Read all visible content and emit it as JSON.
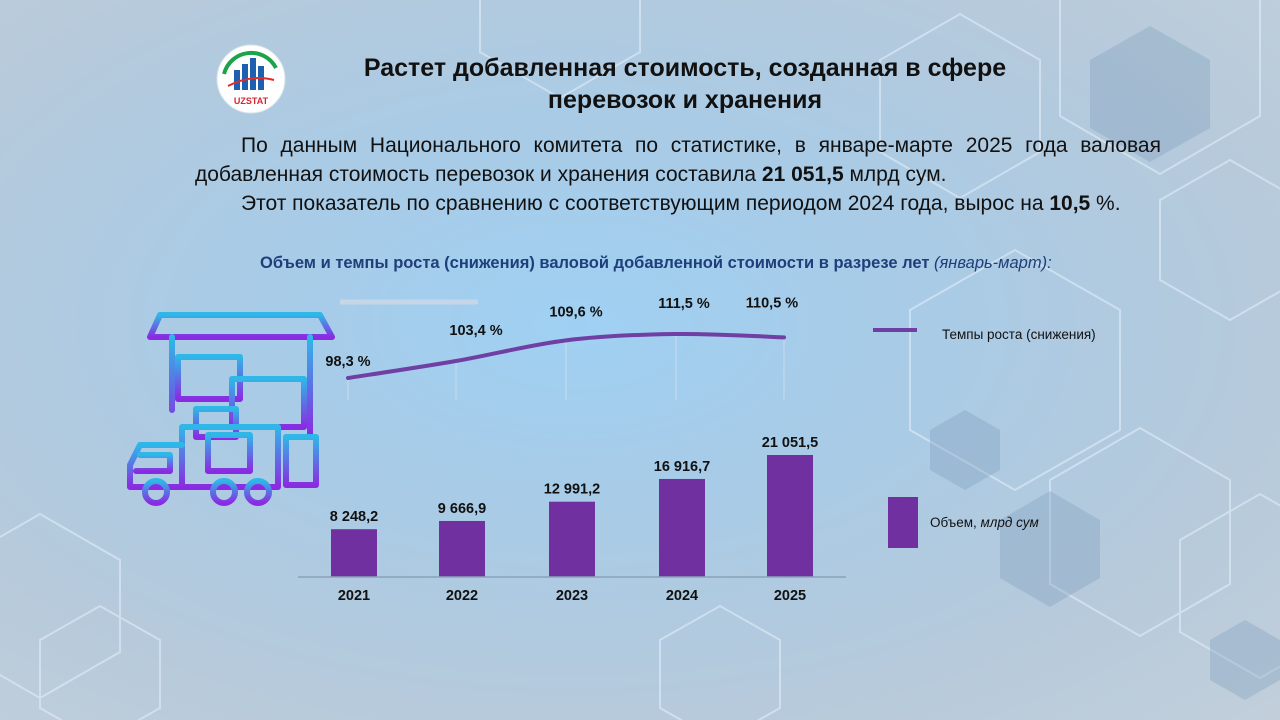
{
  "page": {
    "title": "Растет добавленная стоимость, созданная в сфере перевозок и хранения",
    "logo_text": "UZSTAT",
    "paragraph1_pre": "По данным Национального комитета по статистике, в январе-марте 2025 года валовая добавленная стоимость перевозок и хранения составила ",
    "paragraph1_bold": "21 051,5",
    "paragraph1_post": " млрд сум.",
    "paragraph2_pre": "Этот показатель по сравнению с соответствующим периодом 2024 года, вырос на ",
    "paragraph2_bold": "10,5",
    "paragraph2_post": " %.",
    "chart_title_main": "Объем и темпы роста (снижения) валовой добавленной стоимости в разрезе лет",
    "chart_title_paren": "(январь-март):"
  },
  "colors": {
    "bar": "#7030a0",
    "line": "#6f3fa3",
    "title_blue": "#1f3e7a",
    "truck_top": "#2fb7e8",
    "truck_bottom": "#8a2be2"
  },
  "chart_data": {
    "type": "bar",
    "categories": [
      "2021",
      "2022",
      "2023",
      "2024",
      "2025"
    ],
    "series": [
      {
        "name": "Объем, млрд сум",
        "name_plain": "Объем, ",
        "name_italic": "млрд сум",
        "kind": "bar",
        "values": [
          8248.2,
          9666.9,
          12991.2,
          16916.7,
          21051.5
        ],
        "labels": [
          "8 248,2",
          "9 666,9",
          "12 991,2",
          "16 916,7",
          "21 051,5"
        ]
      },
      {
        "name": "Темпы роста (снижения)",
        "kind": "line",
        "values": [
          98.3,
          103.4,
          109.6,
          111.5,
          110.5
        ],
        "labels": [
          "98,3 %",
          "103,4 %",
          "109,6 %",
          "111,5 %",
          "110,5 %"
        ]
      }
    ],
    "title": "Объем и темпы роста (снижения) валовой добавленной стоимости в разрезе лет (январь-март):",
    "legend_position": "right",
    "grid": false
  }
}
